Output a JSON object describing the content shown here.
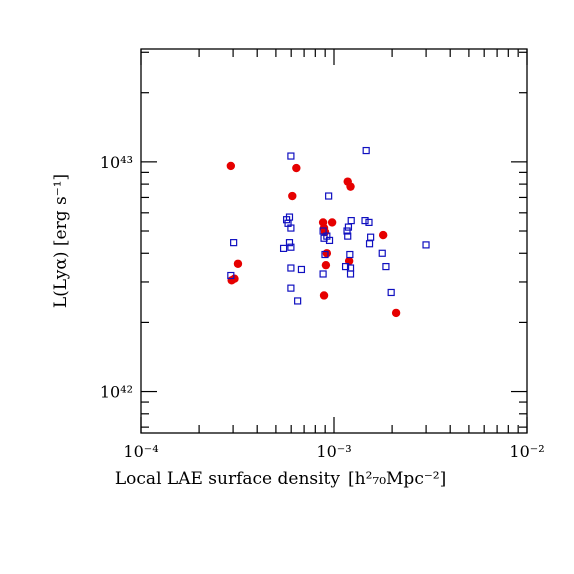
{
  "chart_data": {
    "type": "scatter",
    "xlabel": "Local LAE surface density",
    "xlabel_unit": "[h²₇₀Mpc⁻²]",
    "ylabel": "L(Lyα) [erg s⁻¹]",
    "x_scale": "log",
    "y_scale": "log",
    "xlim": [
      0.0001,
      0.01
    ],
    "ylim": [
      6.6e+41,
      3.1e+43
    ],
    "x_ticks": [
      {
        "value": 0.0001,
        "label": "10⁻⁴"
      },
      {
        "value": 0.001,
        "label": "10⁻³"
      },
      {
        "value": 0.01,
        "label": "10⁻²"
      }
    ],
    "y_ticks": [
      {
        "value": 1e+42,
        "label": "10⁴²"
      },
      {
        "value": 1e+43,
        "label": "10⁴³"
      }
    ],
    "grid": false,
    "series": [
      {
        "marker": "filled-circle",
        "color": "#e60000",
        "points": [
          [
            0.000292,
            9.6e+42
          ],
          [
            0.000295,
            3.05e+42
          ],
          [
            0.000305,
            3.1e+42
          ],
          [
            0.000318,
            3.6e+42
          ],
          [
            0.000608,
            7.1e+42
          ],
          [
            0.000638,
            9.4e+42
          ],
          [
            0.000878,
            5.45e+42
          ],
          [
            0.000888,
            5.15e+42
          ],
          [
            0.000888,
            2.62e+42
          ],
          [
            0.000898,
            4.95e+42
          ],
          [
            0.000908,
            3.55e+42
          ],
          [
            0.000918,
            4e+42
          ],
          [
            0.000978,
            5.45e+42
          ],
          [
            0.001178,
            8.2e+42
          ],
          [
            0.001218,
            7.8e+42
          ],
          [
            0.001198,
            3.7e+42
          ],
          [
            0.001798,
            4.8e+42
          ],
          [
            0.002098,
            2.2e+42
          ]
        ]
      },
      {
        "marker": "open-square",
        "color": "#1010c0",
        "points": [
          [
            0.000292,
            3.2e+42
          ],
          [
            0.000302,
            4.45e+42
          ],
          [
            0.000548,
            4.2e+42
          ],
          [
            0.000568,
            5.6e+42
          ],
          [
            0.000578,
            5.4e+42
          ],
          [
            0.000588,
            5.75e+42
          ],
          [
            0.000588,
            4.45e+42
          ],
          [
            0.000598,
            4.25e+42
          ],
          [
            0.000598,
            3.45e+42
          ],
          [
            0.000598,
            2.82e+42
          ],
          [
            0.000598,
            5.15e+42
          ],
          [
            0.000598,
            1.06e+43
          ],
          [
            0.000648,
            2.48e+42
          ],
          [
            0.000678,
            3.4e+42
          ],
          [
            0.000878,
            5e+42
          ],
          [
            0.000878,
            3.25e+42
          ],
          [
            0.000888,
            4.65e+42
          ],
          [
            0.000898,
            3.95e+42
          ],
          [
            0.000918,
            4.75e+42
          ],
          [
            0.000938,
            7.1e+42
          ],
          [
            0.000948,
            4.55e+42
          ],
          [
            0.001148,
            3.5e+42
          ],
          [
            0.001168,
            5e+42
          ],
          [
            0.001178,
            4.75e+42
          ],
          [
            0.001188,
            5.2e+42
          ],
          [
            0.001208,
            3.95e+42
          ],
          [
            0.001228,
            5.55e+42
          ],
          [
            0.001218,
            3.25e+42
          ],
          [
            0.001218,
            3.45e+42
          ],
          [
            0.001448,
            5.55e+42
          ],
          [
            0.001468,
            1.12e+43
          ],
          [
            0.001518,
            5.45e+42
          ],
          [
            0.001528,
            4.4e+42
          ],
          [
            0.001548,
            4.7e+42
          ],
          [
            0.001778,
            4e+42
          ],
          [
            0.001858,
            3.5e+42
          ],
          [
            0.001978,
            2.7e+42
          ],
          [
            0.002998,
            4.35e+42
          ]
        ]
      }
    ]
  }
}
